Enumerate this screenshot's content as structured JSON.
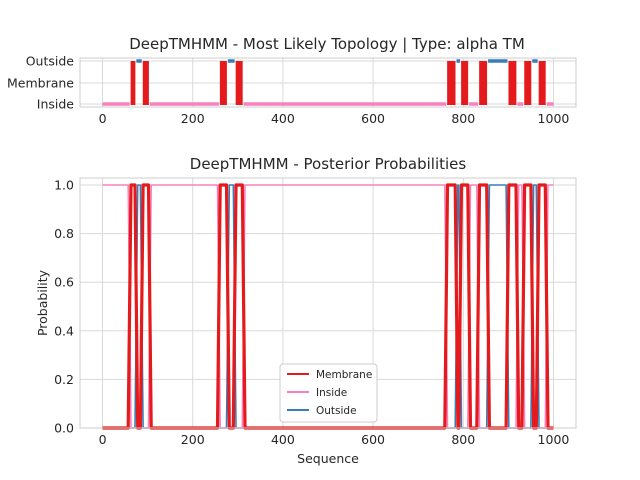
{
  "chart_data": [
    {
      "type": "line",
      "title": "DeepTMHMM - Most Likely Topology | Type: alpha TM",
      "xlabel": "",
      "ylabel": "",
      "xlim": [
        0,
        1000
      ],
      "xticks": [
        "0",
        "200",
        "400",
        "600",
        "800",
        "1000"
      ],
      "yticks": [
        "Inside",
        "Membrane",
        "Outside"
      ],
      "grid": true,
      "segments": [
        {
          "label": "Inside",
          "start": 0,
          "end": 60,
          "color": "#f781bf"
        },
        {
          "label": "Membrane",
          "start": 60,
          "end": 75,
          "color": "#e41a1c"
        },
        {
          "label": "Outside",
          "start": 75,
          "end": 87,
          "color": "#377eb8"
        },
        {
          "label": "Membrane",
          "start": 87,
          "end": 105,
          "color": "#e41a1c"
        },
        {
          "label": "Inside",
          "start": 105,
          "end": 258,
          "color": "#f781bf"
        },
        {
          "label": "Membrane",
          "start": 258,
          "end": 278,
          "color": "#e41a1c"
        },
        {
          "label": "Outside",
          "start": 278,
          "end": 293,
          "color": "#377eb8"
        },
        {
          "label": "Membrane",
          "start": 293,
          "end": 313,
          "color": "#e41a1c"
        },
        {
          "label": "Inside",
          "start": 313,
          "end": 762,
          "color": "#f781bf"
        },
        {
          "label": "Membrane",
          "start": 762,
          "end": 785,
          "color": "#e41a1c"
        },
        {
          "label": "Outside",
          "start": 785,
          "end": 793,
          "color": "#377eb8"
        },
        {
          "label": "Membrane",
          "start": 793,
          "end": 813,
          "color": "#e41a1c"
        },
        {
          "label": "Inside",
          "start": 813,
          "end": 833,
          "color": "#f781bf"
        },
        {
          "label": "Membrane",
          "start": 833,
          "end": 855,
          "color": "#e41a1c"
        },
        {
          "label": "Outside",
          "start": 855,
          "end": 898,
          "color": "#377eb8"
        },
        {
          "label": "Membrane",
          "start": 898,
          "end": 920,
          "color": "#e41a1c"
        },
        {
          "label": "Inside",
          "start": 920,
          "end": 933,
          "color": "#f781bf"
        },
        {
          "label": "Membrane",
          "start": 933,
          "end": 953,
          "color": "#e41a1c"
        },
        {
          "label": "Outside",
          "start": 953,
          "end": 965,
          "color": "#377eb8"
        },
        {
          "label": "Membrane",
          "start": 965,
          "end": 985,
          "color": "#e41a1c"
        },
        {
          "label": "Inside",
          "start": 985,
          "end": 1000,
          "color": "#f781bf"
        }
      ]
    },
    {
      "type": "line",
      "title": "DeepTMHMM - Posterior Probabilities",
      "xlabel": "Sequence",
      "ylabel": "Probability",
      "xlim": [
        0,
        1000
      ],
      "ylim": [
        0,
        1.0
      ],
      "xticks": [
        "0",
        "200",
        "400",
        "600",
        "800",
        "1000"
      ],
      "yticks": [
        "0.0",
        "0.2",
        "0.4",
        "0.6",
        "0.8",
        "1.0"
      ],
      "grid": true,
      "legend": "lower center",
      "series": [
        {
          "name": "Membrane",
          "color": "#e41a1c"
        },
        {
          "name": "Inside",
          "color": "#f781bf"
        },
        {
          "name": "Outside",
          "color": "#377eb8"
        }
      ]
    }
  ]
}
